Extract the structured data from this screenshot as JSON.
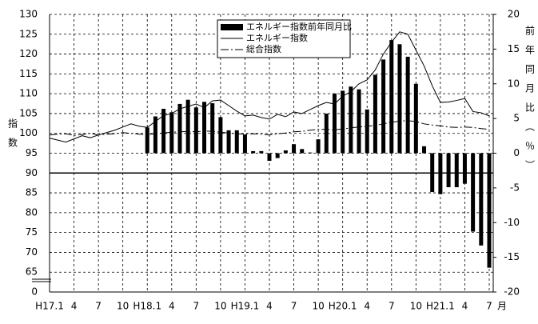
{
  "chart_data": {
    "type": "combo",
    "categories": [
      "H17.1",
      null,
      null,
      "4",
      null,
      null,
      "7",
      null,
      null,
      "10",
      null,
      null,
      "H18.1",
      null,
      null,
      "4",
      null,
      null,
      "7",
      null,
      null,
      "10",
      null,
      null,
      "H19.1",
      null,
      null,
      "4",
      null,
      null,
      "7",
      null,
      null,
      "10",
      null,
      null,
      "H20.1",
      null,
      null,
      "4",
      null,
      null,
      "7",
      null,
      null,
      "10",
      null,
      null,
      "H21.1",
      null,
      null,
      "4",
      null,
      null,
      "7"
    ],
    "x_unit": "月",
    "ylabel": "指数",
    "y2label": "前年同月比（％）",
    "ylim": [
      60,
      130
    ],
    "yticks": [
      65,
      70,
      75,
      80,
      85,
      90,
      95,
      100,
      105,
      110,
      115,
      120,
      125,
      130
    ],
    "y_break_label": "0",
    "y2lim": [
      -20,
      20
    ],
    "y2ticks": [
      -20,
      -15,
      -10,
      -5,
      0,
      5,
      10,
      15,
      20
    ],
    "hline": 90,
    "grid": true,
    "legend": "top",
    "series": [
      {
        "name": "エネルギー指数前年同月比",
        "type": "bar",
        "axis": "y2",
        "color": "#000000",
        "values": [
          null,
          null,
          null,
          null,
          null,
          null,
          null,
          null,
          null,
          null,
          null,
          null,
          3.7,
          5.3,
          6.4,
          5.9,
          7.1,
          7.7,
          6.6,
          7.4,
          7.2,
          5.2,
          3.3,
          3.3,
          2.7,
          0.3,
          0.3,
          -1.1,
          -0.7,
          0.4,
          1.3,
          0.6,
          0.1,
          2.0,
          5.7,
          8.6,
          9.0,
          9.6,
          9.2,
          6.3,
          11.3,
          13.5,
          16.3,
          15.7,
          13.9,
          10.0,
          1.0,
          -5.6,
          -5.9,
          -4.9,
          -4.9,
          -4.4,
          -11.3,
          -13.3,
          -16.5
        ]
      },
      {
        "name": "エネルギー指数",
        "type": "line",
        "color": "#000000",
        "values": [
          98.8,
          98.3,
          97.8,
          98.6,
          99.4,
          98.9,
          99.6,
          100.2,
          100.8,
          101.6,
          102.4,
          101.8,
          101.5,
          103.0,
          104.5,
          105.0,
          106.2,
          106.8,
          107.4,
          106.5,
          108.2,
          108.4,
          107.0,
          105.6,
          104.4,
          104.6,
          104.0,
          103.6,
          104.8,
          104.2,
          105.4,
          105.0,
          106.0,
          107.0,
          107.8,
          107.4,
          109.4,
          110.5,
          112.5,
          113.5,
          116.0,
          120.0,
          123.0,
          125.6,
          125.0,
          121.0,
          117.0,
          112.0,
          107.8,
          107.9,
          108.3,
          108.8,
          105.5,
          105.2,
          104.4
        ]
      },
      {
        "name": "総合指数",
        "type": "line",
        "dash": true,
        "color": "#000000",
        "values": [
          99.6,
          99.8,
          99.9,
          99.5,
          99.7,
          100.0,
          99.6,
          99.8,
          99.9,
          100.2,
          100.0,
          99.8,
          99.7,
          99.9,
          100.1,
          100.3,
          100.4,
          100.5,
          100.4,
          100.6,
          100.5,
          100.3,
          100.1,
          99.9,
          99.8,
          99.9,
          99.8,
          99.6,
          99.9,
          100.1,
          100.4,
          100.5,
          100.8,
          101.0,
          101.0,
          100.9,
          101.1,
          101.4,
          101.6,
          101.8,
          102.0,
          102.4,
          102.8,
          103.1,
          103.2,
          103.0,
          102.4,
          102.1,
          101.9,
          101.6,
          101.5,
          101.6,
          101.5,
          101.2,
          101.0
        ]
      }
    ]
  }
}
